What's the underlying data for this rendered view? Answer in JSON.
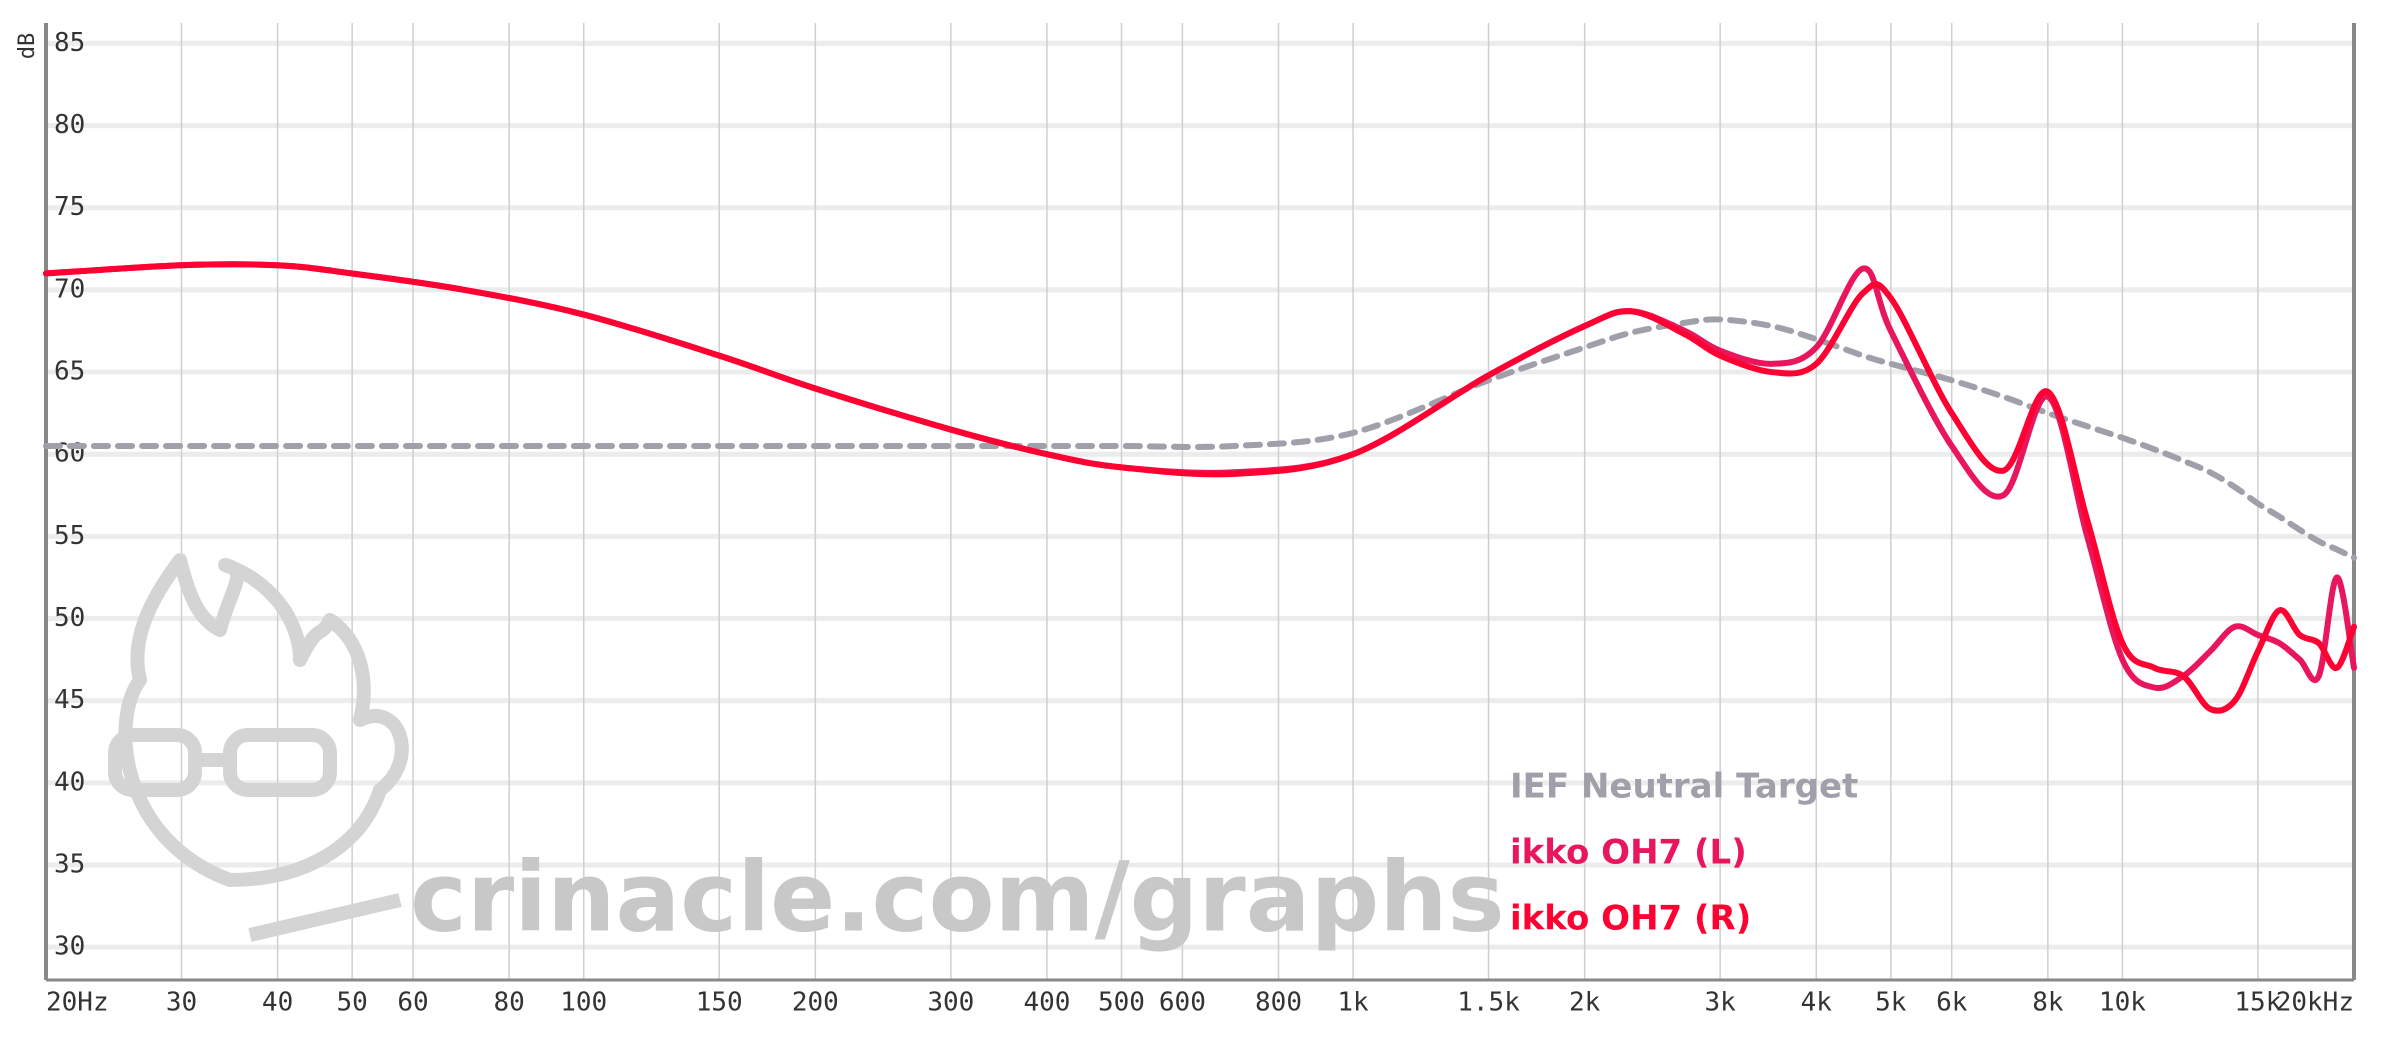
{
  "chart_data": {
    "type": "line",
    "y_label": "dB",
    "watermark": "crinacle.com/graphs",
    "log_x": true,
    "grid": true,
    "legend": "lower right",
    "x": [
      20,
      30,
      40,
      50,
      70,
      100,
      150,
      200,
      300,
      400,
      500,
      700,
      1000,
      1500,
      2000,
      2300,
      2700,
      3000,
      3500,
      4000,
      4600,
      5000,
      6000,
      7000,
      8000,
      9000,
      10000,
      11000,
      12000,
      13000,
      14000,
      15000,
      16000,
      17000,
      18000,
      19000,
      20000
    ],
    "series": [
      {
        "name": "IEF Neutral Target",
        "color": "#a0a0aa",
        "dashed": true,
        "values": [
          60.5,
          60.5,
          60.5,
          60.5,
          60.5,
          60.5,
          60.5,
          60.5,
          60.5,
          60.5,
          60.5,
          60.5,
          61.3,
          64.5,
          66.5,
          67.4,
          68,
          68.2,
          67.8,
          67,
          66,
          65.5,
          64.5,
          63.5,
          62.5,
          61.7,
          61,
          60.3,
          59.6,
          58.9,
          58,
          57,
          56.2,
          55.4,
          54.7,
          54.2,
          53.7
        ]
      },
      {
        "name": "ikko OH7 (L)",
        "color": "#e8175d",
        "values": [
          71,
          71.5,
          71.5,
          71,
          70,
          68.5,
          66,
          64,
          61.5,
          60,
          59.2,
          58.9,
          60,
          64.8,
          67.8,
          68.7,
          67.5,
          66.3,
          65.5,
          66.5,
          71.3,
          67.5,
          60.5,
          57.5,
          63.5,
          55,
          47.5,
          45.8,
          46.5,
          48,
          49.5,
          49,
          48.5,
          47.5,
          46.5,
          52.5,
          47
        ]
      },
      {
        "name": "ikko OH7 (R)",
        "color": "#ff0033",
        "values": [
          71,
          71.5,
          71.5,
          71,
          70,
          68.5,
          66,
          64,
          61.5,
          60,
          59.2,
          58.8,
          60,
          64.8,
          67.8,
          68.7,
          67.3,
          66,
          65,
          65.5,
          69.8,
          69.5,
          62.5,
          59,
          63.8,
          56,
          48.5,
          47,
          46.5,
          44.5,
          45,
          48,
          50.5,
          49,
          48.5,
          47,
          49.5
        ]
      }
    ],
    "xlim": [
      20,
      20000
    ],
    "xticks": [
      {
        "value": 20,
        "label": "20Hz"
      },
      30,
      40,
      50,
      60,
      80,
      100,
      150,
      200,
      300,
      400,
      500,
      600,
      800,
      {
        "value": 1000,
        "label": "1k"
      },
      {
        "value": 1500,
        "label": "1.5k"
      },
      {
        "value": 2000,
        "label": "2k"
      },
      {
        "value": 3000,
        "label": "3k"
      },
      {
        "value": 4000,
        "label": "4k"
      },
      {
        "value": 5000,
        "label": "5k"
      },
      {
        "value": 6000,
        "label": "6k"
      },
      {
        "value": 8000,
        "label": "8k"
      },
      {
        "value": 10000,
        "label": "10k"
      },
      {
        "value": 15000,
        "label": "15k"
      },
      {
        "value": 20000,
        "label": "20kHz"
      }
    ],
    "ylim": [
      28,
      86
    ],
    "yticks": [
      30,
      35,
      40,
      45,
      50,
      55,
      60,
      65,
      70,
      75,
      80,
      85
    ]
  }
}
